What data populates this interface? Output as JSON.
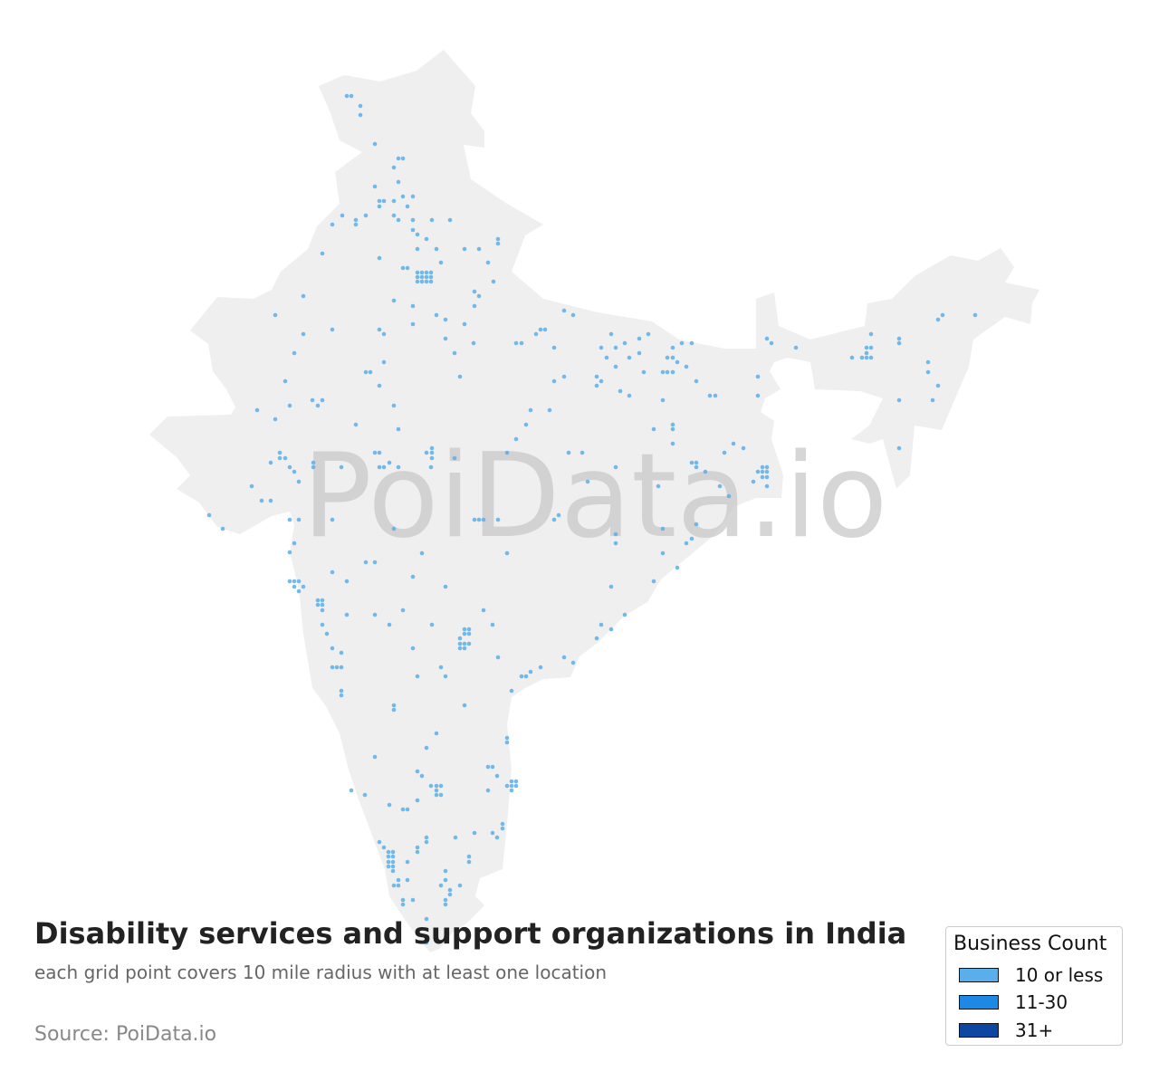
{
  "title": "Disability services and support organizations in India",
  "subtitle": "each grid point covers 10 mile radius with at least one location",
  "source": "Source: PoiData.io",
  "watermark": "PoiData.io",
  "colors": {
    "land": "#efefef",
    "point": "#5aaeea",
    "watermark": "#c8c8c8"
  },
  "legend": {
    "title": "Business Count",
    "items": [
      {
        "label": "10 or less",
        "color": "#5aaeea"
      },
      {
        "label": "11-30",
        "color": "#1e88e5"
      },
      {
        "label": "31+",
        "color": "#0d47a1"
      }
    ]
  }
}
